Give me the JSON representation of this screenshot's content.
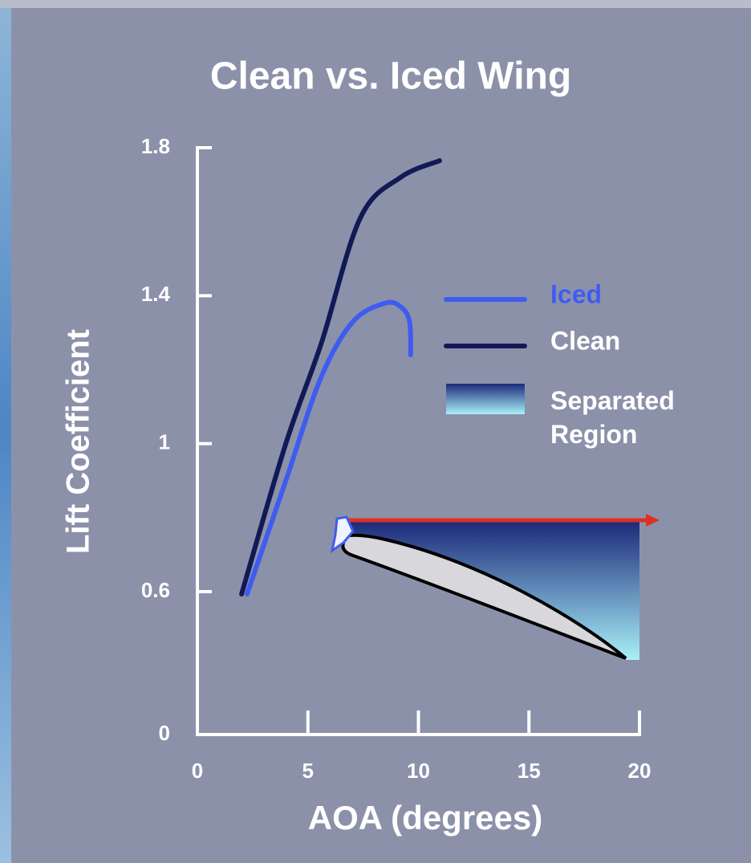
{
  "chart_data": {
    "type": "line",
    "title": "Clean vs. Iced Wing",
    "xlabel": "AOA (degrees)",
    "ylabel": "Lift Coefficient",
    "xlim": [
      0,
      20
    ],
    "xticks": [
      0,
      5,
      10,
      15,
      20
    ],
    "ylim": [
      0,
      1.8
    ],
    "yticks": [
      0,
      0.6,
      1.0,
      1.4,
      1.8
    ],
    "series": [
      {
        "name": "Iced",
        "color": "#3f5cf0",
        "x": [
          2.25,
          4.0,
          5.6,
          7.04,
          8.5,
          9.2,
          9.6,
          9.65
        ],
        "values": [
          0.59,
          0.9,
          1.18,
          1.33,
          1.38,
          1.37,
          1.33,
          1.24
        ]
      },
      {
        "name": "Clean",
        "color": "#111a55",
        "x": [
          2.0,
          4.0,
          5.6,
          7.37,
          9.2,
          10.96
        ],
        "values": [
          0.59,
          1.0,
          1.27,
          1.61,
          1.72,
          1.765
        ]
      }
    ],
    "separated_region": {
      "name": "Separated Region",
      "color_top": "#1c2a7a",
      "color_bottom": "#a8f0f8"
    }
  }
}
